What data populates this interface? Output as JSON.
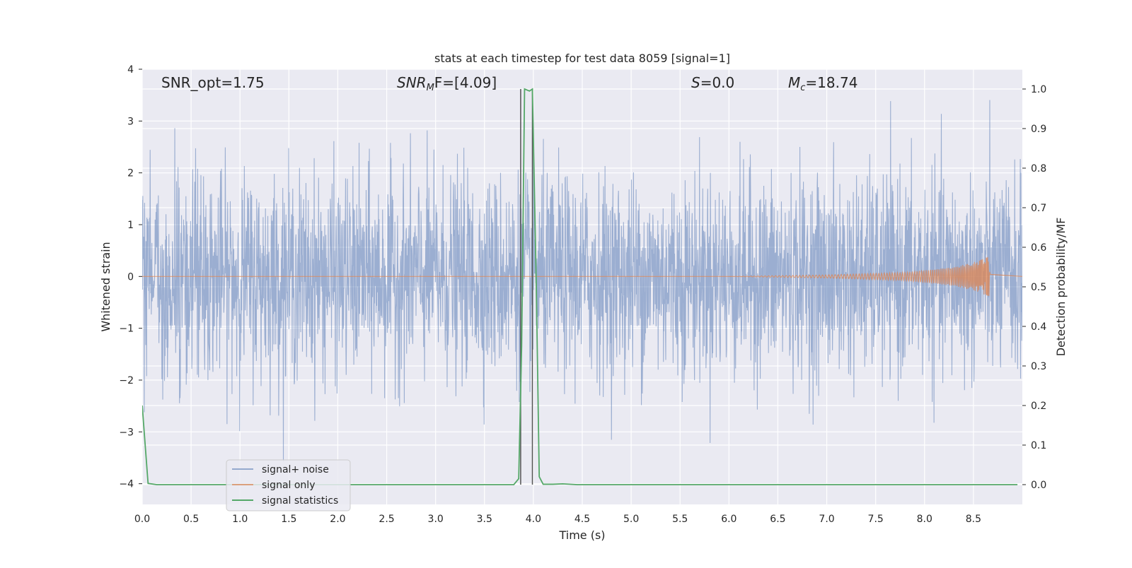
{
  "chart_data": {
    "type": "line",
    "title": "stats at each timestep for test data 8059 [signal=1]",
    "xlabel": "Time (s)",
    "ylabel": "Whitened strain",
    "ylabel_right": "Detection probability/MF",
    "xlim": [
      0.0,
      9.0
    ],
    "ylim": [
      -4.4,
      4.0
    ],
    "ylim_right": [
      -0.05,
      1.05
    ],
    "xticks": [
      0.0,
      0.5,
      1.0,
      1.5,
      2.0,
      2.5,
      3.0,
      3.5,
      4.0,
      4.5,
      5.0,
      5.5,
      6.0,
      6.5,
      7.0,
      7.5,
      8.0,
      8.5
    ],
    "xtick_labels": [
      "0.0",
      "0.5",
      "1.0",
      "1.5",
      "2.0",
      "2.5",
      "3.0",
      "3.5",
      "4.0",
      "4.5",
      "5.0",
      "5.5",
      "6.0",
      "6.5",
      "7.0",
      "7.5",
      "8.0",
      "8.5"
    ],
    "yticks": [
      -4,
      -3,
      -2,
      -1,
      0,
      1,
      2,
      3,
      4
    ],
    "ytick_labels": [
      "−4",
      "−3",
      "−2",
      "−1",
      "0",
      "1",
      "2",
      "3",
      "4"
    ],
    "yticks_right": [
      0.0,
      0.1,
      0.2,
      0.3,
      0.4,
      0.5,
      0.6,
      0.7,
      0.8,
      0.9,
      1.0
    ],
    "ytick_labels_right": [
      "0.0",
      "0.1",
      "0.2",
      "0.3",
      "0.4",
      "0.5",
      "0.6",
      "0.7",
      "0.8",
      "0.9",
      "1.0"
    ],
    "grid": true,
    "legend_placement": "lower-left",
    "annotations": {
      "snr_opt": "SNR_opt=1.75",
      "snr_mf_sym": "SNR",
      "snr_mf_sub": "M",
      "snr_mf_rest": "F=[4.09]",
      "s_sym": "S",
      "s_rest": "=0.0",
      "mc_sym": "M",
      "mc_sub": "c",
      "mc_rest": "=18.74"
    },
    "vertical_lines_x": [
      3.87,
      3.99
    ],
    "series": [
      {
        "name": "signal+ noise",
        "color": "#4c72b0",
        "axis": "left",
        "kind": "noise",
        "x_range": [
          0.0,
          9.0
        ],
        "typical_abs_max": 2.0,
        "extreme_range": [
          -3.9,
          3.45
        ]
      },
      {
        "name": "signal only",
        "color": "#dd8452",
        "axis": "left",
        "kind": "chirp",
        "x_range": [
          0.0,
          8.67
        ],
        "amplitude_points": [
          [
            6.0,
            0.0
          ],
          [
            7.0,
            0.03
          ],
          [
            7.8,
            0.08
          ],
          [
            8.3,
            0.18
          ],
          [
            8.55,
            0.3
          ],
          [
            8.67,
            0.4
          ]
        ]
      },
      {
        "name": "signal statistics",
        "color": "#55a868",
        "axis": "right",
        "x": [
          0.0,
          0.06,
          0.15,
          3.8,
          3.85,
          3.88,
          3.91,
          3.96,
          3.99,
          4.03,
          4.06,
          4.1,
          4.2,
          4.3,
          4.45,
          8.95
        ],
        "values": [
          0.2,
          0.003,
          0.0,
          0.0,
          0.015,
          0.35,
          1.0,
          0.995,
          1.0,
          0.5,
          0.02,
          0.001,
          0.001,
          0.002,
          0.0,
          0.0
        ]
      }
    ]
  }
}
